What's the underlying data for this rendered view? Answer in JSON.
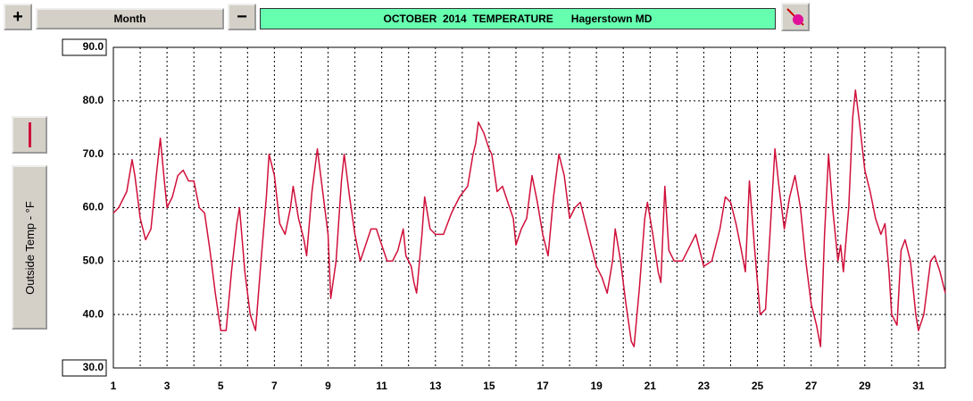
{
  "toolbar": {
    "zoom_in": "+",
    "period": "Month",
    "zoom_out": "−"
  },
  "chart_data": {
    "type": "line",
    "title": "OCTOBER  2014  TEMPERATURE      Hagerstown MD",
    "xlim": [
      1,
      32
    ],
    "xticks": [
      1,
      3,
      5,
      7,
      9,
      11,
      13,
      15,
      17,
      19,
      21,
      23,
      25,
      27,
      29,
      31
    ],
    "minor_xticks": [
      2,
      4,
      6,
      8,
      10,
      12,
      14,
      16,
      18,
      20,
      22,
      24,
      26,
      28,
      30,
      32
    ],
    "ylim": [
      30,
      90
    ],
    "yticks": [
      {
        "value": 30,
        "label": "30.0"
      },
      {
        "value": 40,
        "label": "40.0"
      },
      {
        "value": 50,
        "label": "50.0"
      },
      {
        "value": 60,
        "label": "60.0"
      },
      {
        "value": 70,
        "label": "70.0"
      },
      {
        "value": 80,
        "label": "80.0"
      },
      {
        "value": 90,
        "label": "90.0"
      }
    ],
    "grid": true,
    "x": [
      1,
      1.2,
      1.5,
      1.7,
      1.8,
      2,
      2.2,
      2.4,
      2.6,
      2.75,
      2.9,
      3,
      3.2,
      3.4,
      3.6,
      3.8,
      4,
      4.2,
      4.4,
      4.6,
      4.8,
      5,
      5.2,
      5.4,
      5.6,
      5.7,
      5.9,
      6.1,
      6.3,
      6.5,
      6.7,
      6.8,
      7,
      7.2,
      7.4,
      7.6,
      7.7,
      7.9,
      8.1,
      8.2,
      8.4,
      8.6,
      8.8,
      9,
      9.1,
      9.3,
      9.5,
      9.6,
      9.8,
      10,
      10.2,
      10.4,
      10.6,
      10.8,
      11,
      11.2,
      11.4,
      11.6,
      11.8,
      11.9,
      12.1,
      12.2,
      12.3,
      12.5,
      12.6,
      12.8,
      13,
      13.3,
      13.6,
      13.9,
      14.2,
      14.4,
      14.5,
      14.6,
      14.8,
      15,
      15.1,
      15.3,
      15.5,
      15.7,
      15.9,
      16,
      16.2,
      16.4,
      16.6,
      16.8,
      17,
      17.2,
      17.4,
      17.6,
      17.8,
      18,
      18.2,
      18.4,
      18.6,
      18.8,
      19,
      19.2,
      19.4,
      19.6,
      19.7,
      19.9,
      20.1,
      20.3,
      20.4,
      20.6,
      20.8,
      20.9,
      21.1,
      21.3,
      21.4,
      21.55,
      21.7,
      21.9,
      22.2,
      22.5,
      22.7,
      22.85,
      23,
      23.3,
      23.6,
      23.8,
      24,
      24.2,
      24.4,
      24.55,
      24.7,
      24.9,
      25.1,
      25.3,
      25.5,
      25.65,
      25.8,
      26,
      26.2,
      26.4,
      26.6,
      26.8,
      27,
      27.2,
      27.35,
      27.5,
      27.65,
      27.8,
      28,
      28.1,
      28.2,
      28.4,
      28.55,
      28.65,
      28.8,
      29,
      29.2,
      29.4,
      29.6,
      29.75,
      29.9,
      30,
      30.2,
      30.35,
      30.5,
      30.7,
      30.9,
      31,
      31.2,
      31.45,
      31.6,
      31.8,
      32
    ],
    "series": [
      {
        "name": "Outside Temp - °F",
        "color": "#d0103a",
        "values": [
          59,
          60,
          63,
          69,
          66,
          58,
          54,
          56,
          66,
          73,
          65,
          60,
          62,
          66,
          67,
          65,
          65,
          60,
          59,
          52,
          44,
          37,
          37,
          48,
          57,
          60,
          48,
          40,
          37,
          50,
          62,
          70,
          66,
          57,
          55,
          60,
          64,
          58,
          54,
          51,
          63,
          71,
          63,
          55,
          43,
          50,
          65,
          70,
          62,
          55,
          50,
          53,
          56,
          56,
          53,
          50,
          50,
          52,
          56,
          51,
          49,
          46,
          44,
          55,
          62,
          56,
          55,
          55,
          59,
          62,
          64,
          70,
          72,
          76,
          74,
          71,
          70,
          63,
          64,
          61,
          58,
          53,
          56,
          58,
          66,
          61,
          55,
          51,
          62,
          70,
          66,
          58,
          60,
          61,
          57,
          53,
          49,
          47,
          44,
          50,
          56,
          50,
          42,
          35,
          34,
          45,
          58,
          61,
          55,
          48,
          46,
          64,
          52,
          50,
          50,
          53,
          55,
          52,
          49,
          50,
          56,
          62,
          61,
          57,
          52,
          48,
          65,
          52,
          40,
          41,
          58,
          71,
          64,
          56,
          62,
          66,
          60,
          50,
          42,
          38,
          34,
          55,
          70,
          60,
          50,
          53,
          48,
          60,
          77,
          82,
          76,
          67,
          63,
          58,
          55,
          57,
          48,
          40,
          38,
          52,
          54,
          50,
          40,
          37,
          40,
          50,
          51,
          48,
          44
        ]
      }
    ]
  }
}
